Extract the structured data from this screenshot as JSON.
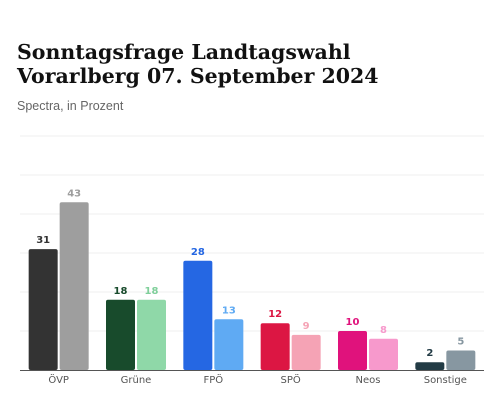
{
  "title": "Sonntagsfrage Landtagswahl Vorarlberg 07. September 2024",
  "subtitle": "Spectra, in Prozent",
  "chart_data": {
    "type": "bar",
    "categories": [
      "ÖVP",
      "Grüne",
      "FPÖ",
      "SPÖ",
      "Neos",
      "Sonstige"
    ],
    "series": [
      {
        "values": [
          31,
          18,
          28,
          12,
          10,
          2
        ]
      },
      {
        "values": [
          43,
          18,
          13,
          9,
          8,
          5
        ]
      }
    ],
    "colors": [
      [
        "#333333",
        "#9e9e9e"
      ],
      [
        "#184b2c",
        "#8fd8a8"
      ],
      [
        "#2567e3",
        "#5faaf3"
      ],
      [
        "#dc1643",
        "#f5a3b5"
      ],
      [
        "#e0127c",
        "#f799cc"
      ],
      [
        "#223b45",
        "#8797a1"
      ]
    ],
    "label_colors": [
      [
        "#333333",
        "#9e9e9e"
      ],
      [
        "#184b2c",
        "#7fcf9a"
      ],
      [
        "#2567e3",
        "#5faaf3"
      ],
      [
        "#dc1643",
        "#f5a3b5"
      ],
      [
        "#e0127c",
        "#f799cc"
      ],
      [
        "#223b45",
        "#8797a1"
      ]
    ],
    "ylim": [
      0,
      60
    ],
    "grid": true,
    "legend": "none"
  }
}
